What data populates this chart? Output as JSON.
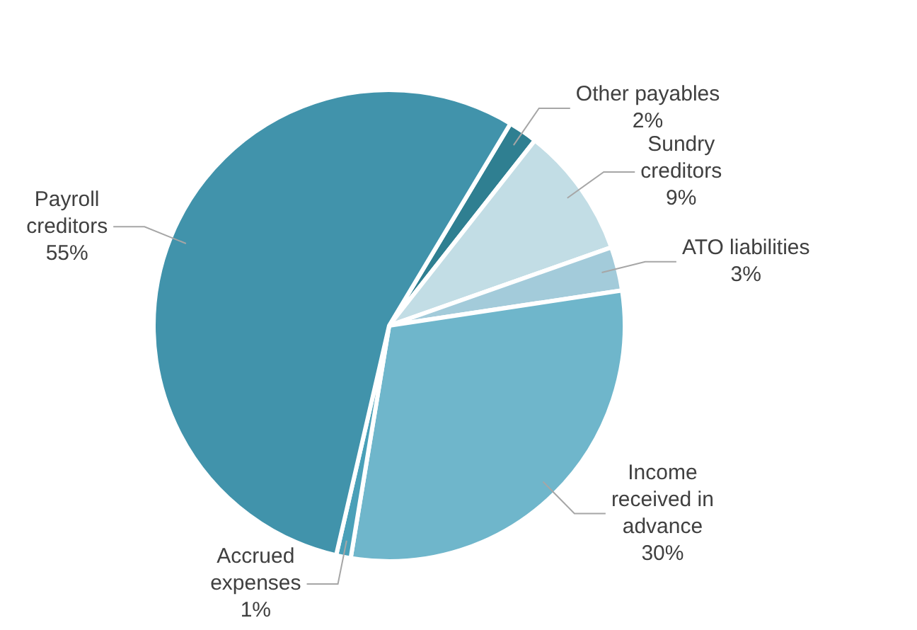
{
  "chart_data": {
    "type": "pie",
    "categories": [
      "Other payables",
      "Sundry creditors",
      "ATO liabilities",
      "Income received in advance",
      "Accrued expenses",
      "Payroll creditors"
    ],
    "values": [
      2,
      9,
      3,
      30,
      1,
      55
    ],
    "colors": [
      "#2f7f91",
      "#c2dde5",
      "#a3cbda",
      "#6fb6cb",
      "#4aa0b8",
      "#4193ab"
    ],
    "value_labels": [
      "2%",
      "9%",
      "3%",
      "30%",
      "1%",
      "55%"
    ],
    "legend": false
  }
}
